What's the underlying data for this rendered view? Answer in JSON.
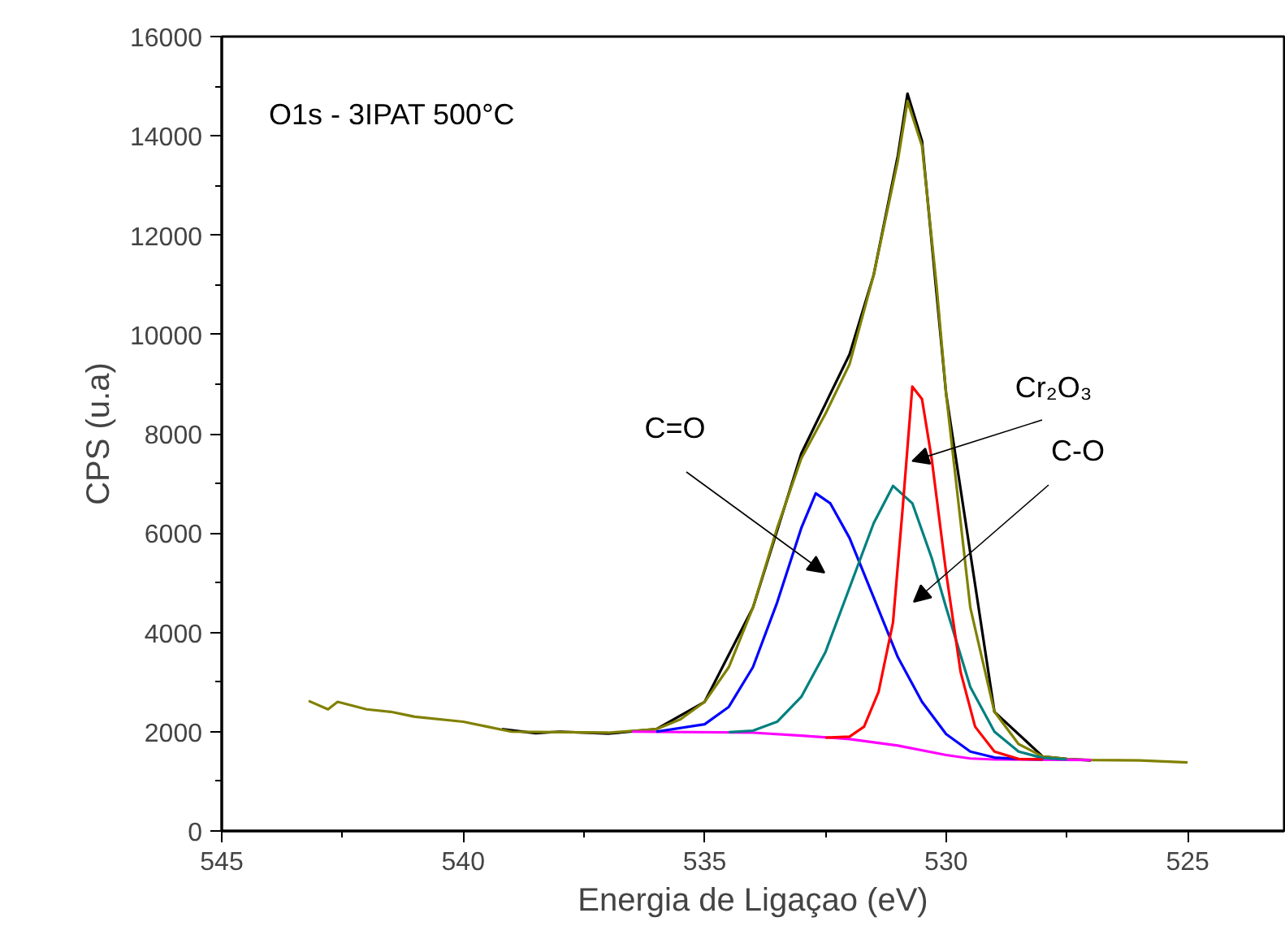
{
  "chart_data": {
    "type": "line",
    "xlabel": "Energia de Ligaçao (eV)",
    "ylabel": "CPS (u.a)",
    "xlim": [
      545,
      523
    ],
    "xticks": [
      545,
      540,
      535,
      530,
      525
    ],
    "ylim": [
      0,
      16000
    ],
    "yticks": [
      0,
      2000,
      4000,
      6000,
      8000,
      10000,
      12000,
      14000,
      16000
    ],
    "grid": false,
    "marker": "none",
    "line_style": "solid",
    "annotations": [
      "O1s - 3IPAT 500°C",
      "C=O",
      {
        "text": "Cr₂O₃",
        "x": 530.7,
        "y": 7450
      },
      "C-O"
    ],
    "series": [
      {
        "color": "#000000",
        "x": [
          539.2,
          538.5,
          538,
          537,
          536,
          535,
          534,
          533,
          532,
          531.5,
          531,
          530.8,
          530.5,
          530,
          529,
          528,
          527.5,
          527
        ],
        "values": [
          2050,
          1970,
          2000,
          1960,
          2050,
          2600,
          4500,
          7600,
          9600,
          11200,
          13600,
          14850,
          13900,
          8800,
          2400,
          1500,
          1450,
          1420
        ]
      },
      {
        "color": "#808000",
        "x": [
          543.2,
          542.8,
          542.6,
          542,
          541.5,
          541,
          540,
          539.5,
          539,
          538,
          537,
          536,
          535.5,
          535,
          534.5,
          534,
          533.5,
          533,
          532.5,
          532,
          531.5,
          531,
          530.8,
          530.5,
          530.2,
          530,
          529.5,
          529,
          528.5,
          528,
          527.5,
          527,
          526,
          525
        ],
        "values": [
          2620,
          2450,
          2600,
          2450,
          2400,
          2300,
          2200,
          2100,
          2000,
          1990,
          1980,
          2050,
          2250,
          2600,
          3300,
          4500,
          6100,
          7500,
          8400,
          9400,
          11200,
          13500,
          14700,
          13800,
          11000,
          8800,
          4500,
          2400,
          1750,
          1500,
          1450,
          1430,
          1420,
          1380
        ]
      },
      {
        "color": "#ff00ff",
        "x": [
          536.5,
          534,
          533,
          532,
          531,
          530,
          529.5,
          529,
          527
        ],
        "values": [
          2000,
          1980,
          1920,
          1850,
          1720,
          1530,
          1460,
          1440,
          1430
        ]
      },
      {
        "color": "#0000ff",
        "x": [
          536,
          535,
          534.5,
          534,
          533.5,
          533,
          532.7,
          532.4,
          532,
          531.5,
          531,
          530.5,
          530,
          529.5,
          529,
          528.5,
          528
        ],
        "values": [
          2000,
          2150,
          2500,
          3300,
          4600,
          6100,
          6800,
          6600,
          5900,
          4700,
          3500,
          2600,
          1950,
          1600,
          1480,
          1450,
          1440
        ]
      },
      {
        "color": "#008080",
        "x": [
          534.5,
          534,
          533.5,
          533,
          532.5,
          532,
          531.5,
          531.1,
          530.7,
          530.3,
          530,
          529.5,
          529,
          528.5,
          528,
          527.5
        ],
        "values": [
          1990,
          2020,
          2200,
          2700,
          3600,
          4900,
          6200,
          6950,
          6600,
          5500,
          4500,
          2900,
          2000,
          1600,
          1470,
          1440
        ]
      },
      {
        "color": "#ff0000",
        "x": [
          532.5,
          532,
          531.7,
          531.4,
          531.1,
          530.9,
          530.7,
          530.5,
          530.3,
          530,
          529.7,
          529.4,
          529,
          528.5,
          528
        ],
        "values": [
          1880,
          1900,
          2100,
          2800,
          4200,
          6500,
          8950,
          8700,
          7500,
          5200,
          3200,
          2100,
          1600,
          1450,
          1440
        ]
      }
    ]
  }
}
